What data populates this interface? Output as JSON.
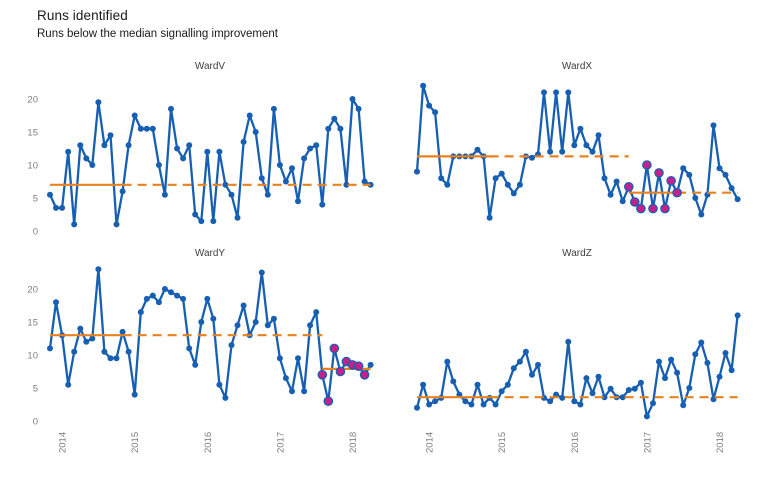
{
  "page": {
    "title": "Runs identified",
    "subtitle": "Runs below the median signalling improvement"
  },
  "chart_data": {
    "type": "line",
    "title": "Runs identified",
    "subtitle": "Runs below the median signalling improvement",
    "layout": "2x2 faceted small multiples, run charts",
    "x_axis": {
      "tick_labels": [
        "2014",
        "2015",
        "2016",
        "2017",
        "2018"
      ],
      "tick_month_indices": [
        2,
        14,
        26,
        38,
        50
      ],
      "label_rotation_deg": 90,
      "grid": false
    },
    "y_axis": {
      "tick_labels": [
        "0",
        "5",
        "10",
        "15",
        "20"
      ],
      "tick_values": [
        0,
        5,
        10,
        15,
        20
      ],
      "range": [
        0,
        23
      ],
      "grid": false,
      "shown_on": "left column only"
    },
    "legend": "none",
    "colors": {
      "line": "#175fb3",
      "point": "#175fb3",
      "run_highlight": "#c2218d",
      "median": "#e8821e",
      "axis_text": "#7f7f7f",
      "panel_title_text": "#404040",
      "title_text": "#1a1a1a",
      "background": "#ffffff"
    },
    "panels": [
      {
        "title": "WardV",
        "values": [
          5.5,
          3.5,
          3.5,
          12,
          1,
          13,
          11,
          10,
          19.5,
          13,
          14.5,
          1,
          6,
          13,
          17.5,
          15.5,
          15.5,
          15.5,
          10,
          5.5,
          18.5,
          12.5,
          11,
          13,
          2.5,
          1.5,
          12,
          1.5,
          12,
          7,
          5.5,
          2,
          13.5,
          17.5,
          15,
          8,
          5.5,
          18.5,
          10,
          7.5,
          9.5,
          4.5,
          11,
          12.5,
          13,
          4,
          15.5,
          17,
          15.5,
          7,
          20,
          18.5,
          7.5,
          7
        ],
        "medians": [
          {
            "value": 7,
            "from": 0,
            "to": 12,
            "style": "solid"
          },
          {
            "value": 7,
            "from": 12,
            "to": 53,
            "style": "dashed"
          }
        ],
        "run": null
      },
      {
        "title": "WardX",
        "values": [
          9,
          22,
          19,
          18,
          8,
          7,
          11.3,
          11.3,
          11.3,
          11.3,
          12.3,
          11.3,
          2,
          8,
          8.7,
          7,
          5.7,
          7,
          11.3,
          11.1,
          11.6,
          21,
          12,
          21,
          12,
          21,
          13,
          15.5,
          13,
          12,
          14.5,
          8,
          5.5,
          7.5,
          4.5,
          6.7,
          4.4,
          3.4,
          10,
          3.4,
          8.8,
          3.4,
          7.6,
          5.8,
          9.5,
          8.5,
          5,
          2.5,
          5.5,
          16,
          9.5,
          8.5,
          6.5,
          4.8
        ],
        "medians": [
          {
            "value": 11.3,
            "from": 0,
            "to": 12,
            "style": "solid"
          },
          {
            "value": 11.3,
            "from": 12,
            "to": 35,
            "style": "dashed"
          },
          {
            "value": 5.8,
            "from": 35,
            "to": 43,
            "style": "solid"
          },
          {
            "value": 5.8,
            "from": 43,
            "to": 53,
            "style": "dashed"
          }
        ],
        "run": {
          "from": 35,
          "to": 43
        }
      },
      {
        "title": "WardY",
        "values": [
          11,
          18,
          13,
          5.5,
          10.5,
          14,
          12,
          12.5,
          23,
          10.5,
          9.5,
          9.5,
          13.5,
          10.5,
          4,
          16.5,
          18.5,
          19,
          18,
          20,
          19.5,
          19,
          18.5,
          11,
          8.5,
          15,
          18.5,
          15.5,
          5.5,
          3.5,
          11.5,
          14.5,
          17.5,
          13,
          15,
          22.5,
          14.5,
          15.5,
          9.5,
          6.5,
          4.5,
          9.5,
          4.5,
          14.5,
          16.5,
          7,
          3,
          11,
          7.5,
          9,
          8.5,
          8.3,
          7,
          8.5
        ],
        "medians": [
          {
            "value": 13,
            "from": 0,
            "to": 12,
            "style": "solid"
          },
          {
            "value": 13,
            "from": 12,
            "to": 45,
            "style": "dashed"
          },
          {
            "value": 7.9,
            "from": 45,
            "to": 53,
            "style": "solid"
          }
        ],
        "run": {
          "from": 45,
          "to": 52
        }
      },
      {
        "title": "WardZ",
        "values": [
          2,
          5.5,
          2.5,
          3,
          3.5,
          9,
          6,
          4,
          3,
          2.5,
          5.5,
          2.5,
          3.5,
          2.5,
          4.5,
          5.5,
          8,
          9,
          10.5,
          7,
          8.5,
          3.5,
          3,
          4,
          3.5,
          12,
          3,
          2.5,
          6.5,
          4.2,
          6.7,
          3.6,
          4.9,
          3.6,
          3.6,
          4.7,
          4.9,
          5.8,
          0.7,
          2.7,
          9,
          6.5,
          9.3,
          7.3,
          2.4,
          5,
          10.1,
          11.9,
          8.8,
          3.3,
          6.7,
          10.3,
          7.7,
          16
        ],
        "medians": [
          {
            "value": 3.6,
            "from": 0,
            "to": 12,
            "style": "solid"
          },
          {
            "value": 3.6,
            "from": 12,
            "to": 53,
            "style": "dashed"
          }
        ],
        "run": null
      }
    ]
  }
}
